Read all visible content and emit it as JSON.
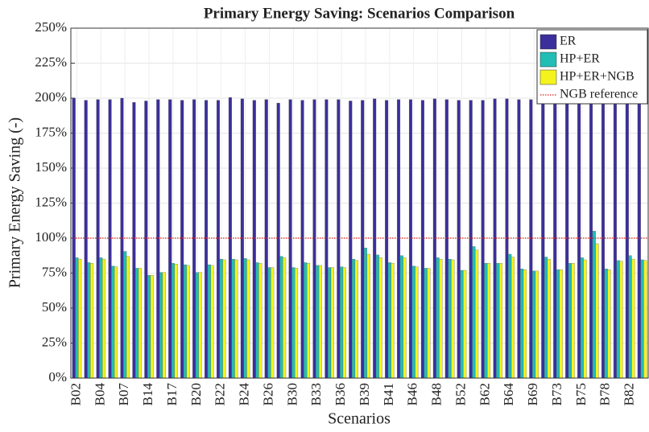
{
  "chart_data": {
    "type": "bar",
    "title": "Primary Energy Saving: Scenarios Comparison",
    "x_label": "Scenarios",
    "y_label": "Primary Energy Saving (-)",
    "categories": [
      "B02",
      null,
      "B04",
      null,
      "B07",
      null,
      "B14",
      null,
      "B17",
      null,
      "B20",
      null,
      "B22",
      null,
      "B24",
      null,
      "B26",
      null,
      "B30",
      null,
      "B33",
      null,
      "B36",
      null,
      "B39",
      null,
      "B41",
      null,
      "B46",
      null,
      "B48",
      null,
      "B52",
      null,
      "B62",
      null,
      "B64",
      null,
      "B69",
      null,
      "B73",
      null,
      "B75",
      null,
      "B78",
      null,
      "B82",
      null
    ],
    "series": [
      {
        "name": "ER",
        "color": "#3b2f9c",
        "values": [
          200,
          198.5,
          199,
          199,
          200,
          197,
          198,
          199,
          199,
          198.5,
          199,
          198.5,
          198.5,
          200.5,
          199.5,
          198.5,
          199,
          196.5,
          199,
          198.5,
          199,
          199,
          199,
          198,
          198.5,
          199.5,
          198.5,
          199,
          199,
          198.5,
          199.5,
          199,
          198.5,
          198.5,
          198.5,
          199.5,
          199.5,
          199,
          199,
          199,
          199,
          199,
          199,
          199,
          199,
          199,
          199,
          199
        ]
      },
      {
        "name": "HP+ER",
        "color": "#22bdb5",
        "values": [
          86,
          82.5,
          86,
          80,
          90.5,
          78.5,
          73.5,
          75.5,
          82,
          81,
          75.5,
          81,
          85,
          85,
          85.5,
          82.5,
          79,
          87,
          79,
          82.5,
          80.5,
          79,
          79.5,
          85,
          93,
          88,
          82.5,
          87.5,
          80,
          78.5,
          86,
          85,
          77,
          94,
          82,
          82,
          88.5,
          78,
          76.5,
          86.5,
          77.5,
          82,
          86,
          105,
          78,
          84,
          87.5,
          84.5
        ]
      },
      {
        "name": "HP+ER+NGB",
        "color": "#f4f41c",
        "values": [
          85,
          82,
          85,
          79.5,
          87,
          78.5,
          73.5,
          75.5,
          81.5,
          80.5,
          75.5,
          80.5,
          84.5,
          84.5,
          84.5,
          82,
          79,
          86,
          78.5,
          82,
          80.5,
          79,
          79,
          84,
          88.5,
          86,
          82,
          86,
          79.5,
          78.5,
          85,
          84.5,
          77,
          91.5,
          82,
          82,
          86.5,
          77.5,
          76.5,
          85,
          77.5,
          82,
          84.5,
          96,
          77.5,
          83.5,
          85,
          84
        ]
      }
    ],
    "reference": {
      "name": "NGB reference",
      "value": 100,
      "color": "#e0201b"
    },
    "ylim": [
      0,
      250
    ],
    "yticks": [
      {
        "value": 0,
        "label": "0%"
      },
      {
        "value": 25,
        "label": "25%"
      },
      {
        "value": 50,
        "label": "50%"
      },
      {
        "value": 75,
        "label": "75%"
      },
      {
        "value": 100,
        "label": "100%"
      },
      {
        "value": 125,
        "label": "125%"
      },
      {
        "value": 150,
        "label": "150%"
      },
      {
        "value": 175,
        "label": "175%"
      },
      {
        "value": 200,
        "label": "200%"
      },
      {
        "value": 225,
        "label": "225%"
      },
      {
        "value": 250,
        "label": "250%"
      }
    ],
    "grid": true,
    "legend": "upper right"
  }
}
